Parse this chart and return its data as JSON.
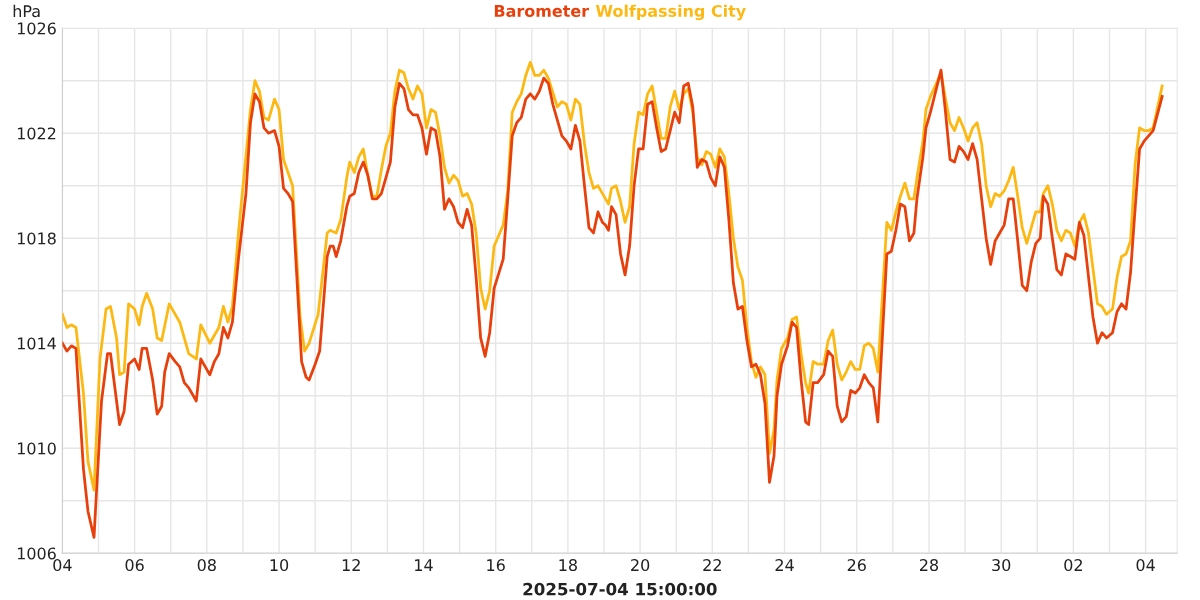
{
  "chart_data": {
    "type": "line",
    "xlabel": "2025-07-04 15:00:00",
    "ylabel": "hPa",
    "legend": "top",
    "grid": true,
    "marker": "none",
    "line_style": "solid",
    "xlim": [
      "2025-06-04T00:00",
      "2025-07-04T21:00"
    ],
    "xticks": [
      {
        "value": "2025-06-04",
        "label": "04"
      },
      {
        "value": "2025-06-05",
        "label": null
      },
      {
        "value": "2025-06-06",
        "label": "06"
      },
      {
        "value": "2025-06-07",
        "label": null
      },
      {
        "value": "2025-06-08",
        "label": "08"
      },
      {
        "value": "2025-06-09",
        "label": null
      },
      {
        "value": "2025-06-10",
        "label": "10"
      },
      {
        "value": "2025-06-11",
        "label": null
      },
      {
        "value": "2025-06-12",
        "label": "12"
      },
      {
        "value": "2025-06-13",
        "label": null
      },
      {
        "value": "2025-06-14",
        "label": "14"
      },
      {
        "value": "2025-06-15",
        "label": null
      },
      {
        "value": "2025-06-16",
        "label": "16"
      },
      {
        "value": "2025-06-17",
        "label": null
      },
      {
        "value": "2025-06-18",
        "label": "18"
      },
      {
        "value": "2025-06-19",
        "label": null
      },
      {
        "value": "2025-06-20",
        "label": "20"
      },
      {
        "value": "2025-06-21",
        "label": null
      },
      {
        "value": "2025-06-22",
        "label": "22"
      },
      {
        "value": "2025-06-23",
        "label": null
      },
      {
        "value": "2025-06-24",
        "label": "24"
      },
      {
        "value": "2025-06-25",
        "label": null
      },
      {
        "value": "2025-06-26",
        "label": "26"
      },
      {
        "value": "2025-06-27",
        "label": null
      },
      {
        "value": "2025-06-28",
        "label": "28"
      },
      {
        "value": "2025-06-29",
        "label": null
      },
      {
        "value": "2025-06-30",
        "label": "30"
      },
      {
        "value": "2025-07-01",
        "label": null
      },
      {
        "value": "2025-07-02",
        "label": "02"
      },
      {
        "value": "2025-07-03",
        "label": null
      },
      {
        "value": "2025-07-04",
        "label": "04"
      }
    ],
    "ylim": [
      1006,
      1026
    ],
    "yticks": [
      1006,
      {
        "value": 1008,
        "label": null
      },
      1010,
      {
        "value": 1012,
        "label": null
      },
      1014,
      {
        "value": 1016,
        "label": null
      },
      1018,
      {
        "value": 1020,
        "label": null
      },
      1022,
      {
        "value": 1024,
        "label": null
      },
      1026
    ],
    "series": [
      {
        "name": "Barometer",
        "color": "#e8400c",
        "x": [
          "2025-06-04T00:00",
          "2025-06-04T03:00",
          "2025-06-04T06:00",
          "2025-06-04T09:00",
          "2025-06-04T14:00",
          "2025-06-04T17:00",
          "2025-06-04T21:00",
          "2025-06-05T02:00",
          "2025-06-05T06:00",
          "2025-06-05T08:00",
          "2025-06-05T12:00",
          "2025-06-05T14:00",
          "2025-06-05T17:00",
          "2025-06-05T20:00",
          "2025-06-06T00:00",
          "2025-06-06T03:00",
          "2025-06-06T05:00",
          "2025-06-06T08:00",
          "2025-06-06T12:00",
          "2025-06-06T15:00",
          "2025-06-06T18:00",
          "2025-06-06T20:00",
          "2025-06-06T23:00",
          "2025-06-07T03:00",
          "2025-06-07T06:00",
          "2025-06-07T09:00",
          "2025-06-07T12:00",
          "2025-06-07T17:00",
          "2025-06-07T20:00",
          "2025-06-07T23:00",
          "2025-06-08T02:00",
          "2025-06-08T05:00",
          "2025-06-08T08:00",
          "2025-06-08T11:00",
          "2025-06-08T14:00",
          "2025-06-08T17:00",
          "2025-06-08T21:00",
          "2025-06-09T02:00",
          "2025-06-09T05:00",
          "2025-06-09T08:00",
          "2025-06-09T11:00",
          "2025-06-09T14:00",
          "2025-06-09T17:00",
          "2025-06-09T21:00",
          "2025-06-10T00:00",
          "2025-06-10T03:00",
          "2025-06-10T06:00",
          "2025-06-10T09:00",
          "2025-06-10T15:00",
          "2025-06-10T18:00",
          "2025-06-10T20:00",
          "2025-06-11T00:00",
          "2025-06-11T03:00",
          "2025-06-11T08:00",
          "2025-06-11T10:00",
          "2025-06-11T12:00",
          "2025-06-11T14:00",
          "2025-06-11T17:00",
          "2025-06-11T21:00",
          "2025-06-11T23:00",
          "2025-06-12T02:00",
          "2025-06-12T05:00",
          "2025-06-12T08:00",
          "2025-06-12T11:00",
          "2025-06-12T14:00",
          "2025-06-12T17:00",
          "2025-06-12T20:00",
          "2025-06-12T23:00",
          "2025-06-13T02:00",
          "2025-06-13T05:00",
          "2025-06-13T08:00",
          "2025-06-13T11:00",
          "2025-06-13T14:00",
          "2025-06-13T17:00",
          "2025-06-13T20:00",
          "2025-06-13T23:00",
          "2025-06-14T02:00",
          "2025-06-14T05:00",
          "2025-06-14T08:00",
          "2025-06-14T11:00",
          "2025-06-14T14:00",
          "2025-06-14T17:00",
          "2025-06-14T20:00",
          "2025-06-14T23:00",
          "2025-06-15T02:00",
          "2025-06-15T05:00",
          "2025-06-15T08:00",
          "2025-06-15T11:00",
          "2025-06-15T14:00",
          "2025-06-15T17:00",
          "2025-06-15T20:00",
          "2025-06-15T23:00",
          "2025-06-16T05:00",
          "2025-06-16T08:00",
          "2025-06-16T11:00",
          "2025-06-16T14:00",
          "2025-06-16T17:00",
          "2025-06-16T20:00",
          "2025-06-16T23:00",
          "2025-06-17T02:00",
          "2025-06-17T05:00",
          "2025-06-17T08:00",
          "2025-06-17T11:00",
          "2025-06-17T14:00",
          "2025-06-17T20:00",
          "2025-06-17T23:00",
          "2025-06-18T02:00",
          "2025-06-18T05:00",
          "2025-06-18T08:00",
          "2025-06-18T11:00",
          "2025-06-18T14:00",
          "2025-06-18T17:00",
          "2025-06-18T20:00",
          "2025-06-18T23:00",
          "2025-06-19T01:00",
          "2025-06-19T03:00",
          "2025-06-19T05:00",
          "2025-06-19T08:00",
          "2025-06-19T11:00",
          "2025-06-19T14:00",
          "2025-06-19T17:00",
          "2025-06-19T20:00",
          "2025-06-19T23:00",
          "2025-06-20T02:00",
          "2025-06-20T05:00",
          "2025-06-20T08:00",
          "2025-06-20T11:00",
          "2025-06-20T14:00",
          "2025-06-20T17:00",
          "2025-06-20T20:00",
          "2025-06-20T23:00",
          "2025-06-21T02:00",
          "2025-06-21T05:00",
          "2025-06-21T08:00",
          "2025-06-21T11:00",
          "2025-06-21T14:00",
          "2025-06-21T17:00",
          "2025-06-21T20:00",
          "2025-06-21T23:00",
          "2025-06-22T02:00",
          "2025-06-22T05:00",
          "2025-06-22T08:00",
          "2025-06-22T11:00",
          "2025-06-22T14:00",
          "2025-06-22T17:00",
          "2025-06-22T20:00",
          "2025-06-22T23:00",
          "2025-06-23T02:00",
          "2025-06-23T05:00",
          "2025-06-23T08:00",
          "2025-06-23T11:00",
          "2025-06-23T14:00",
          "2025-06-23T17:00",
          "2025-06-23T19:00",
          "2025-06-23T22:00",
          "2025-06-24T02:00",
          "2025-06-24T05:00",
          "2025-06-24T08:00",
          "2025-06-24T11:00",
          "2025-06-24T14:00",
          "2025-06-24T16:00",
          "2025-06-24T19:00",
          "2025-06-24T22:00",
          "2025-06-25T02:00",
          "2025-06-25T05:00",
          "2025-06-25T08:00",
          "2025-06-25T11:00",
          "2025-06-25T14:00",
          "2025-06-25T17:00",
          "2025-06-25T20:00",
          "2025-06-25T23:00",
          "2025-06-26T02:00",
          "2025-06-26T05:00",
          "2025-06-26T08:00",
          "2025-06-26T11:00",
          "2025-06-26T14:00",
          "2025-06-26T20:00",
          "2025-06-26T23:00",
          "2025-06-27T02:00",
          "2025-06-27T05:00",
          "2025-06-27T08:00",
          "2025-06-27T11:00",
          "2025-06-27T14:00",
          "2025-06-27T16:00",
          "2025-06-27T20:00",
          "2025-06-27T22:00",
          "2025-06-28T01:00",
          "2025-06-28T08:00",
          "2025-06-28T11:00",
          "2025-06-28T14:00",
          "2025-06-28T17:00",
          "2025-06-28T20:00",
          "2025-06-28T23:00",
          "2025-06-29T02:00",
          "2025-06-29T05:00",
          "2025-06-29T08:00",
          "2025-06-29T14:00",
          "2025-06-29T17:00",
          "2025-06-29T20:00",
          "2025-06-29T23:00",
          "2025-06-30T02:00",
          "2025-06-30T05:00",
          "2025-06-30T08:00",
          "2025-06-30T11:00",
          "2025-06-30T14:00",
          "2025-06-30T17:00",
          "2025-06-30T20:00",
          "2025-06-30T23:00",
          "2025-07-01T02:00",
          "2025-07-01T04:00",
          "2025-07-01T07:00",
          "2025-07-01T10:00",
          "2025-07-01T13:00",
          "2025-07-01T16:00",
          "2025-07-01T19:00",
          "2025-07-01T22:00",
          "2025-07-02T01:00",
          "2025-07-02T04:00",
          "2025-07-02T07:00",
          "2025-07-02T13:00",
          "2025-07-02T16:00",
          "2025-07-02T19:00",
          "2025-07-02T22:00",
          "2025-07-03T02:00",
          "2025-07-03T05:00",
          "2025-07-03T08:00",
          "2025-07-03T11:00",
          "2025-07-03T14:00",
          "2025-07-03T17:00",
          "2025-07-03T20:00",
          "2025-07-03T23:00",
          "2025-07-04T02:00",
          "2025-07-04T05:00",
          "2025-07-04T11:00"
        ],
        "values": [
          1014.0,
          1013.7,
          1013.9,
          1013.8,
          1009.2,
          1007.6,
          1006.6,
          1011.8,
          1013.6,
          1013.6,
          1011.8,
          1010.9,
          1011.4,
          1013.2,
          1013.4,
          1013.0,
          1013.8,
          1013.8,
          1012.6,
          1011.3,
          1011.6,
          1012.9,
          1013.6,
          1013.3,
          1013.1,
          1012.5,
          1012.3,
          1011.8,
          1013.4,
          1013.1,
          1012.8,
          1013.3,
          1013.6,
          1014.6,
          1014.2,
          1014.8,
          1017.2,
          1019.7,
          1022.4,
          1023.5,
          1023.2,
          1022.2,
          1022.0,
          1022.1,
          1021.5,
          1019.9,
          1019.7,
          1019.4,
          1013.3,
          1012.7,
          1012.6,
          1013.2,
          1013.7,
          1017.3,
          1017.7,
          1017.7,
          1017.3,
          1017.9,
          1019.2,
          1019.6,
          1019.7,
          1020.5,
          1020.9,
          1020.4,
          1019.5,
          1019.5,
          1019.7,
          1020.3,
          1020.9,
          1023.0,
          1023.9,
          1023.7,
          1022.9,
          1022.7,
          1022.7,
          1022.2,
          1021.2,
          1022.2,
          1022.1,
          1021.1,
          1019.1,
          1019.5,
          1019.2,
          1018.6,
          1018.4,
          1019.1,
          1018.5,
          1016.5,
          1014.2,
          1013.5,
          1014.4,
          1016.1,
          1017.2,
          1019.5,
          1021.9,
          1022.4,
          1022.6,
          1023.3,
          1023.5,
          1023.3,
          1023.6,
          1024.1,
          1023.9,
          1023.1,
          1021.9,
          1021.7,
          1021.4,
          1022.3,
          1021.7,
          1020.0,
          1018.4,
          1018.2,
          1019.0,
          1018.6,
          1018.5,
          1018.3,
          1019.2,
          1018.9,
          1017.4,
          1016.6,
          1017.7,
          1020.0,
          1021.4,
          1021.4,
          1023.1,
          1023.2,
          1022.2,
          1021.3,
          1021.4,
          1022.1,
          1022.8,
          1022.4,
          1023.8,
          1023.9,
          1023.0,
          1020.7,
          1021.0,
          1020.9,
          1020.3,
          1020.0,
          1021.1,
          1020.7,
          1018.7,
          1016.3,
          1015.3,
          1015.4,
          1014.1,
          1013.1,
          1013.2,
          1012.8,
          1011.7,
          1008.7,
          1009.7,
          1012.0,
          1013.2,
          1013.9,
          1014.8,
          1014.6,
          1012.6,
          1011.0,
          1010.9,
          1012.5,
          1012.5,
          1012.8,
          1013.7,
          1013.5,
          1011.6,
          1011.0,
          1011.2,
          1012.2,
          1012.1,
          1012.3,
          1012.8,
          1012.5,
          1012.3,
          1011.0,
          1017.4,
          1017.5,
          1018.3,
          1019.3,
          1019.2,
          1017.9,
          1018.2,
          1019.5,
          1021.1,
          1022.2,
          1022.8,
          1024.4,
          1022.8,
          1021.0,
          1020.9,
          1021.5,
          1021.3,
          1021.0,
          1021.6,
          1021.0,
          1018.0,
          1017.0,
          1017.9,
          1018.2,
          1018.5,
          1019.5,
          1019.5,
          1017.9,
          1016.2,
          1016.0,
          1017.1,
          1017.8,
          1018.0,
          1019.6,
          1019.3,
          1018.0,
          1016.8,
          1016.6,
          1017.4,
          1017.3,
          1017.2,
          1018.6,
          1018.1,
          1015.0,
          1014.0,
          1014.4,
          1014.2,
          1014.4,
          1015.2,
          1015.5,
          1015.3,
          1016.7,
          1019.1,
          1021.4,
          1021.7,
          1021.9,
          1022.1,
          1023.4
        ]
      },
      {
        "name": "Wolfpassing City",
        "color": "#fdb913",
        "x": [
          "2025-06-04T00:00",
          "2025-06-04T03:00",
          "2025-06-04T06:00",
          "2025-06-04T09:00",
          "2025-06-04T14:00",
          "2025-06-04T17:00",
          "2025-06-04T21:00",
          "2025-06-05T01:00",
          "2025-06-05T05:00",
          "2025-06-05T08:00",
          "2025-06-05T12:00",
          "2025-06-05T14:00",
          "2025-06-05T17:00",
          "2025-06-05T20:00",
          "2025-06-06T00:00",
          "2025-06-06T03:00",
          "2025-06-06T05:00",
          "2025-06-06T08:00",
          "2025-06-06T12:00",
          "2025-06-06T15:00",
          "2025-06-06T18:00",
          "2025-06-06T23:00",
          "2025-06-07T06:00",
          "2025-06-07T12:00",
          "2025-06-07T17:00",
          "2025-06-07T20:00",
          "2025-06-08T02:00",
          "2025-06-08T08:00",
          "2025-06-08T11:00",
          "2025-06-08T14:00",
          "2025-06-08T17:00",
          "2025-06-08T21:00",
          "2025-06-09T05:00",
          "2025-06-09T08:00",
          "2025-06-09T11:00",
          "2025-06-09T14:00",
          "2025-06-09T17:00",
          "2025-06-09T21:00",
          "2025-06-10T00:00",
          "2025-06-10T03:00",
          "2025-06-10T09:00",
          "2025-06-10T14:00",
          "2025-06-10T17:00",
          "2025-06-10T20:00",
          "2025-06-11T02:00",
          "2025-06-11T08:00",
          "2025-06-11T10:00",
          "2025-06-11T14:00",
          "2025-06-11T17:00",
          "2025-06-11T21:00",
          "2025-06-11T23:00",
          "2025-06-12T02:00",
          "2025-06-12T05:00",
          "2025-06-12T08:00",
          "2025-06-12T11:00",
          "2025-06-12T14:00",
          "2025-06-12T17:00",
          "2025-06-12T20:00",
          "2025-06-12T23:00",
          "2025-06-13T02:00",
          "2025-06-13T05:00",
          "2025-06-13T08:00",
          "2025-06-13T11:00",
          "2025-06-13T14:00",
          "2025-06-13T17:00",
          "2025-06-13T20:00",
          "2025-06-13T23:00",
          "2025-06-14T02:00",
          "2025-06-14T05:00",
          "2025-06-14T08:00",
          "2025-06-14T11:00",
          "2025-06-14T14:00",
          "2025-06-14T17:00",
          "2025-06-14T20:00",
          "2025-06-14T23:00",
          "2025-06-15T02:00",
          "2025-06-15T05:00",
          "2025-06-15T08:00",
          "2025-06-15T11:00",
          "2025-06-15T14:00",
          "2025-06-15T17:00",
          "2025-06-15T20:00",
          "2025-06-15T23:00",
          "2025-06-16T05:00",
          "2025-06-16T08:00",
          "2025-06-16T11:00",
          "2025-06-16T14:00",
          "2025-06-16T17:00",
          "2025-06-16T20:00",
          "2025-06-16T23:00",
          "2025-06-17T02:00",
          "2025-06-17T05:00",
          "2025-06-17T08:00",
          "2025-06-17T11:00",
          "2025-06-17T17:00",
          "2025-06-17T20:00",
          "2025-06-17T23:00",
          "2025-06-18T02:00",
          "2025-06-18T05:00",
          "2025-06-18T08:00",
          "2025-06-18T11:00",
          "2025-06-18T14:00",
          "2025-06-18T17:00",
          "2025-06-18T20:00",
          "2025-06-18T23:00",
          "2025-06-19T01:00",
          "2025-06-19T03:00",
          "2025-06-19T05:00",
          "2025-06-19T08:00",
          "2025-06-19T11:00",
          "2025-06-19T14:00",
          "2025-06-19T17:00",
          "2025-06-19T20:00",
          "2025-06-19T23:00",
          "2025-06-20T02:00",
          "2025-06-20T05:00",
          "2025-06-20T08:00",
          "2025-06-20T11:00",
          "2025-06-20T14:00",
          "2025-06-20T17:00",
          "2025-06-20T20:00",
          "2025-06-20T23:00",
          "2025-06-21T02:00",
          "2025-06-21T05:00",
          "2025-06-21T08:00",
          "2025-06-21T11:00",
          "2025-06-21T14:00",
          "2025-06-21T17:00",
          "2025-06-21T20:00",
          "2025-06-21T23:00",
          "2025-06-22T02:00",
          "2025-06-22T05:00",
          "2025-06-22T08:00",
          "2025-06-22T11:00",
          "2025-06-22T14:00",
          "2025-06-22T17:00",
          "2025-06-22T20:00",
          "2025-06-22T23:00",
          "2025-06-23T02:00",
          "2025-06-23T05:00",
          "2025-06-23T08:00",
          "2025-06-23T11:00",
          "2025-06-23T14:00",
          "2025-06-23T17:00",
          "2025-06-23T19:00",
          "2025-06-23T22:00",
          "2025-06-24T02:00",
          "2025-06-24T05:00",
          "2025-06-24T08:00",
          "2025-06-24T11:00",
          "2025-06-24T14:00",
          "2025-06-24T16:00",
          "2025-06-24T19:00",
          "2025-06-24T22:00",
          "2025-06-25T02:00",
          "2025-06-25T05:00",
          "2025-06-25T08:00",
          "2025-06-25T11:00",
          "2025-06-25T14:00",
          "2025-06-25T17:00",
          "2025-06-25T20:00",
          "2025-06-25T23:00",
          "2025-06-26T02:00",
          "2025-06-26T05:00",
          "2025-06-26T08:00",
          "2025-06-26T11:00",
          "2025-06-26T14:00",
          "2025-06-26T20:00",
          "2025-06-26T23:00",
          "2025-06-27T02:00",
          "2025-06-27T05:00",
          "2025-06-27T08:00",
          "2025-06-27T11:00",
          "2025-06-27T14:00",
          "2025-06-27T16:00",
          "2025-06-27T20:00",
          "2025-06-27T22:00",
          "2025-06-28T01:00",
          "2025-06-28T08:00",
          "2025-06-28T11:00",
          "2025-06-28T14:00",
          "2025-06-28T17:00",
          "2025-06-28T20:00",
          "2025-06-28T23:00",
          "2025-06-29T02:00",
          "2025-06-29T05:00",
          "2025-06-29T08:00",
          "2025-06-29T11:00",
          "2025-06-29T14:00",
          "2025-06-29T17:00",
          "2025-06-29T20:00",
          "2025-06-29T23:00",
          "2025-06-30T02:00",
          "2025-06-30T05:00",
          "2025-06-30T08:00",
          "2025-06-30T11:00",
          "2025-06-30T14:00",
          "2025-06-30T17:00",
          "2025-06-30T20:00",
          "2025-06-30T23:00",
          "2025-07-01T02:00",
          "2025-07-01T04:00",
          "2025-07-01T07:00",
          "2025-07-01T10:00",
          "2025-07-01T13:00",
          "2025-07-01T16:00",
          "2025-07-01T19:00",
          "2025-07-01T22:00",
          "2025-07-02T01:00",
          "2025-07-02T04:00",
          "2025-07-02T07:00",
          "2025-07-02T10:00",
          "2025-07-02T16:00",
          "2025-07-02T19:00",
          "2025-07-02T22:00",
          "2025-07-03T02:00",
          "2025-07-03T05:00",
          "2025-07-03T08:00",
          "2025-07-03T11:00",
          "2025-07-03T14:00",
          "2025-07-03T17:00",
          "2025-07-03T20:00",
          "2025-07-03T23:00",
          "2025-07-04T02:00",
          "2025-07-04T05:00",
          "2025-07-04T11:00"
        ],
        "values": [
          1015.1,
          1014.6,
          1014.7,
          1014.6,
          1012.1,
          1009.5,
          1008.4,
          1013.4,
          1015.3,
          1015.4,
          1014.2,
          1012.8,
          1012.9,
          1015.5,
          1015.3,
          1014.7,
          1015.4,
          1015.9,
          1015.3,
          1014.2,
          1014.1,
          1015.5,
          1014.8,
          1013.6,
          1013.4,
          1014.7,
          1014.0,
          1014.6,
          1015.4,
          1014.8,
          1015.4,
          1018.2,
          1022.9,
          1024.0,
          1023.6,
          1022.6,
          1022.5,
          1023.3,
          1022.9,
          1021.0,
          1020.0,
          1015.0,
          1013.7,
          1014.0,
          1015.1,
          1018.2,
          1018.3,
          1018.2,
          1018.7,
          1020.3,
          1020.9,
          1020.5,
          1021.1,
          1021.4,
          1020.4,
          1019.6,
          1019.6,
          1020.6,
          1021.5,
          1022.0,
          1023.6,
          1024.4,
          1024.3,
          1023.7,
          1023.3,
          1023.8,
          1023.5,
          1022.2,
          1022.9,
          1022.8,
          1021.9,
          1020.7,
          1020.1,
          1020.4,
          1020.2,
          1019.6,
          1019.7,
          1019.3,
          1018.2,
          1016.1,
          1015.3,
          1016.0,
          1017.7,
          1018.5,
          1019.8,
          1022.8,
          1023.2,
          1023.5,
          1024.2,
          1024.7,
          1024.2,
          1024.2,
          1024.4,
          1024.1,
          1023.0,
          1023.2,
          1023.1,
          1022.5,
          1023.3,
          1023.1,
          1021.6,
          1020.5,
          1019.9,
          1020.0,
          1019.7,
          1019.5,
          1019.3,
          1019.9,
          1020.0,
          1019.4,
          1018.6,
          1019.2,
          1021.6,
          1022.8,
          1022.7,
          1023.5,
          1023.8,
          1022.8,
          1021.8,
          1021.8,
          1023.0,
          1023.6,
          1022.9,
          1023.5,
          1023.7,
          1022.8,
          1021.1,
          1020.8,
          1021.3,
          1021.2,
          1020.7,
          1021.4,
          1021.1,
          1019.7,
          1018.0,
          1016.9,
          1016.4,
          1014.6,
          1013.3,
          1012.7,
          1013.1,
          1012.8,
          1009.8,
          1010.7,
          1012.6,
          1013.8,
          1014.2,
          1014.9,
          1015.0,
          1013.6,
          1012.5,
          1012.1,
          1013.3,
          1013.2,
          1013.2,
          1014.1,
          1014.5,
          1013.2,
          1012.6,
          1012.9,
          1013.3,
          1013.0,
          1013.0,
          1013.9,
          1014.0,
          1013.8,
          1012.9,
          1018.6,
          1018.3,
          1019.0,
          1019.6,
          1020.1,
          1019.5,
          1019.5,
          1020.3,
          1021.7,
          1022.9,
          1023.4,
          1024.3,
          1023.3,
          1022.4,
          1022.1,
          1022.6,
          1022.2,
          1021.7,
          1022.2,
          1022.4,
          1021.6,
          1020.0,
          1019.2,
          1019.7,
          1019.6,
          1019.8,
          1020.2,
          1020.7,
          1019.6,
          1018.4,
          1017.8,
          1018.4,
          1019.0,
          1019.0,
          1019.7,
          1020.0,
          1019.3,
          1018.3,
          1017.9,
          1018.3,
          1018.2,
          1017.7,
          1018.6,
          1018.9,
          1018.2,
          1015.5,
          1015.4,
          1015.1,
          1015.3,
          1016.5,
          1017.3,
          1017.4,
          1017.9,
          1020.8,
          1022.2,
          1022.1,
          1022.1,
          1022.2,
          1023.8
        ]
      }
    ]
  }
}
